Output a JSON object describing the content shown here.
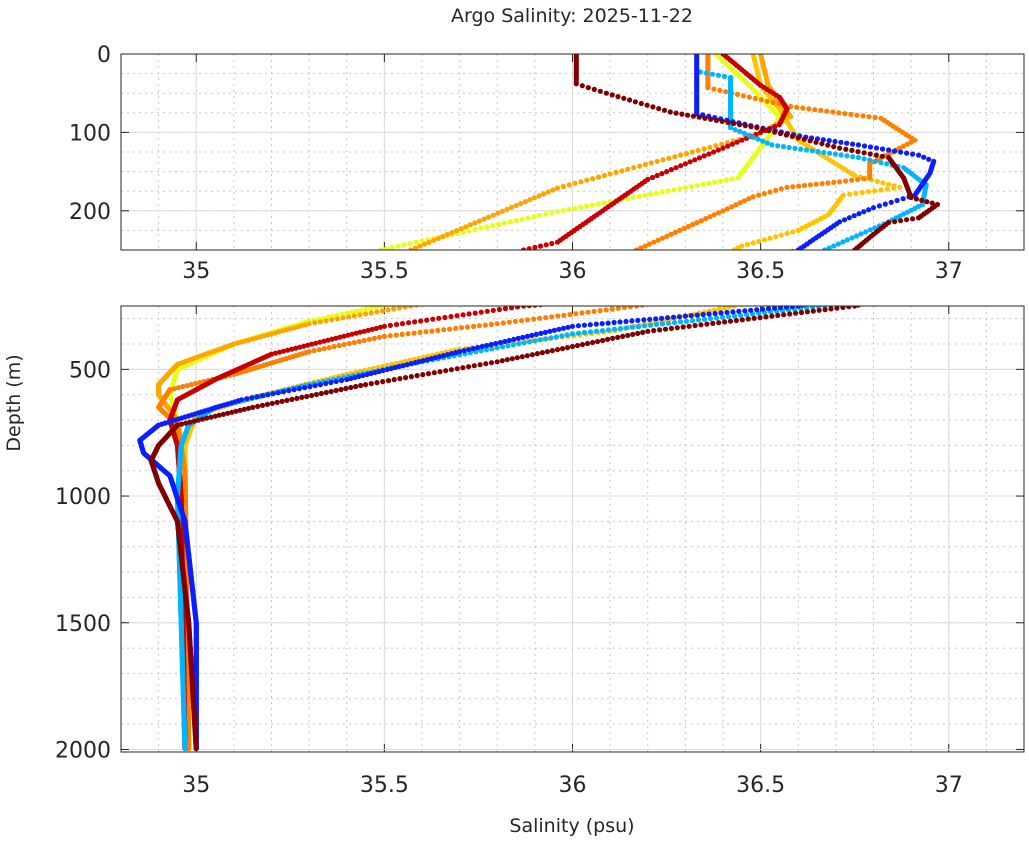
{
  "chart_data": {
    "type": "scatter",
    "title": "Argo Salinity: 2025-11-22",
    "xlabel": "Salinity (psu)",
    "ylabel": "Depth (m)",
    "xlim": [
      34.8,
      37.2
    ],
    "xticks": [
      "35",
      "35.5",
      "36",
      "36.5",
      "37"
    ],
    "xtick_values": [
      35,
      35.5,
      36,
      36.5,
      37
    ],
    "grid": true,
    "panels": [
      {
        "name": "upper",
        "ylim": [
          0,
          250
        ],
        "yticks": [
          "0",
          "100",
          "200"
        ],
        "ytick_values": [
          0,
          100,
          200
        ],
        "minor_y": 25
      },
      {
        "name": "lower",
        "ylim": [
          250,
          2010
        ],
        "yticks": [
          "500",
          "1000",
          "1500",
          "2000"
        ],
        "ytick_values": [
          500,
          1000,
          1500,
          2000
        ],
        "minor_y": 100
      }
    ],
    "series": [
      {
        "name": "profile-yellow",
        "color": "#e6ff1a",
        "points": [
          [
            36.38,
            0
          ],
          [
            36.47,
            40
          ],
          [
            36.55,
            80
          ],
          [
            36.53,
            100
          ],
          [
            36.44,
            158
          ],
          [
            35.96,
            201
          ],
          [
            35.49,
            250
          ],
          [
            35.3,
            310
          ],
          [
            35.1,
            400
          ],
          [
            34.95,
            500
          ],
          [
            34.93,
            600
          ],
          [
            34.95,
            700
          ],
          [
            34.97,
            900
          ],
          [
            34.98,
            2000
          ]
        ]
      },
      {
        "name": "profile-amber",
        "color": "#ffa500",
        "points": [
          [
            36.5,
            0
          ],
          [
            36.52,
            40
          ],
          [
            36.55,
            60
          ],
          [
            36.58,
            80
          ],
          [
            36.49,
            103
          ],
          [
            35.96,
            171
          ],
          [
            35.57,
            250
          ],
          [
            35.3,
            320
          ],
          [
            35.1,
            400
          ],
          [
            34.95,
            480
          ],
          [
            34.9,
            560
          ],
          [
            34.9,
            600
          ],
          [
            34.95,
            700
          ],
          [
            34.97,
            900
          ],
          [
            34.98,
            2000
          ]
        ]
      },
      {
        "name": "profile-gold",
        "color": "#ffc400",
        "points": [
          [
            36.48,
            0
          ],
          [
            36.5,
            40
          ],
          [
            36.55,
            70
          ],
          [
            36.6,
            110
          ],
          [
            36.75,
            155
          ],
          [
            36.87,
            170
          ],
          [
            36.72,
            180
          ],
          [
            36.68,
            205
          ],
          [
            36.6,
            225
          ],
          [
            36.45,
            245
          ],
          [
            36.43,
            250
          ],
          [
            36.1,
            350
          ],
          [
            35.7,
            420
          ],
          [
            35.4,
            520
          ],
          [
            35.15,
            610
          ],
          [
            35.0,
            680
          ],
          [
            34.97,
            800
          ],
          [
            34.97,
            1000
          ],
          [
            34.97,
            2000
          ]
        ]
      },
      {
        "name": "profile-orange",
        "color": "#ff8000",
        "points": [
          [
            36.36,
            0
          ],
          [
            36.36,
            43
          ],
          [
            36.58,
            67
          ],
          [
            36.82,
            82
          ],
          [
            36.91,
            110
          ],
          [
            36.79,
            140
          ],
          [
            36.79,
            158
          ],
          [
            36.71,
            163
          ],
          [
            36.57,
            170
          ],
          [
            36.48,
            182
          ],
          [
            36.4,
            200
          ],
          [
            36.17,
            250
          ],
          [
            35.8,
            320
          ],
          [
            35.5,
            370
          ],
          [
            35.3,
            430
          ],
          [
            35.1,
            520
          ],
          [
            34.93,
            580
          ],
          [
            34.9,
            650
          ],
          [
            34.95,
            720
          ],
          [
            34.97,
            900
          ],
          [
            34.98,
            2000
          ]
        ]
      },
      {
        "name": "profile-red",
        "color": "#c80000",
        "points": [
          [
            36.4,
            0
          ],
          [
            36.45,
            20
          ],
          [
            36.5,
            40
          ],
          [
            36.55,
            55
          ],
          [
            36.57,
            70
          ],
          [
            36.55,
            90
          ],
          [
            36.45,
            110
          ],
          [
            36.2,
            160
          ],
          [
            35.96,
            240
          ],
          [
            35.87,
            250
          ],
          [
            35.5,
            330
          ],
          [
            35.2,
            440
          ],
          [
            35.05,
            540
          ],
          [
            34.95,
            620
          ],
          [
            34.93,
            700
          ],
          [
            34.95,
            800
          ],
          [
            34.96,
            1000
          ],
          [
            34.97,
            2000
          ]
        ]
      },
      {
        "name": "profile-sky",
        "color": "#00b4ff",
        "points": [
          [
            36.34,
            23
          ],
          [
            36.42,
            30
          ],
          [
            36.42,
            94
          ],
          [
            36.53,
            116
          ],
          [
            36.76,
            132
          ],
          [
            36.88,
            145
          ],
          [
            36.94,
            167
          ],
          [
            36.93,
            192
          ],
          [
            36.84,
            214
          ],
          [
            36.67,
            250
          ],
          [
            36.0,
            360
          ],
          [
            35.6,
            470
          ],
          [
            35.3,
            560
          ],
          [
            35.05,
            650
          ],
          [
            34.98,
            720
          ],
          [
            34.96,
            800
          ],
          [
            34.95,
            1000
          ],
          [
            34.96,
            1500
          ],
          [
            34.97,
            2000
          ]
        ]
      },
      {
        "name": "profile-blue",
        "color": "#0a1eff",
        "points": [
          [
            36.33,
            0
          ],
          [
            36.33,
            76
          ],
          [
            36.49,
            93
          ],
          [
            36.62,
            106
          ],
          [
            36.76,
            116
          ],
          [
            36.92,
            129
          ],
          [
            36.96,
            137
          ],
          [
            36.95,
            152
          ],
          [
            36.91,
            180
          ],
          [
            36.8,
            196
          ],
          [
            36.71,
            214
          ],
          [
            36.6,
            250
          ],
          [
            36.0,
            330
          ],
          [
            35.7,
            430
          ],
          [
            35.4,
            540
          ],
          [
            35.12,
            620
          ],
          [
            34.9,
            720
          ],
          [
            34.85,
            780
          ],
          [
            34.86,
            830
          ],
          [
            34.93,
            920
          ],
          [
            34.97,
            1100
          ],
          [
            35.0,
            1500
          ],
          [
            35.0,
            2000
          ]
        ]
      },
      {
        "name": "profile-darkred",
        "color": "#800000",
        "points": [
          [
            36.01,
            0
          ],
          [
            36.01,
            38
          ],
          [
            36.09,
            50
          ],
          [
            36.26,
            74
          ],
          [
            36.49,
            94
          ],
          [
            36.71,
            120
          ],
          [
            36.84,
            132
          ],
          [
            36.88,
            158
          ],
          [
            36.9,
            183
          ],
          [
            36.97,
            192
          ],
          [
            36.92,
            209
          ],
          [
            36.84,
            215
          ],
          [
            36.8,
            230
          ],
          [
            36.75,
            250
          ],
          [
            36.2,
            350
          ],
          [
            35.8,
            470
          ],
          [
            35.45,
            560
          ],
          [
            35.15,
            650
          ],
          [
            34.95,
            720
          ],
          [
            34.9,
            800
          ],
          [
            34.88,
            860
          ],
          [
            34.9,
            950
          ],
          [
            34.95,
            1100
          ],
          [
            34.98,
            1500
          ],
          [
            35.0,
            2000
          ]
        ]
      }
    ]
  }
}
